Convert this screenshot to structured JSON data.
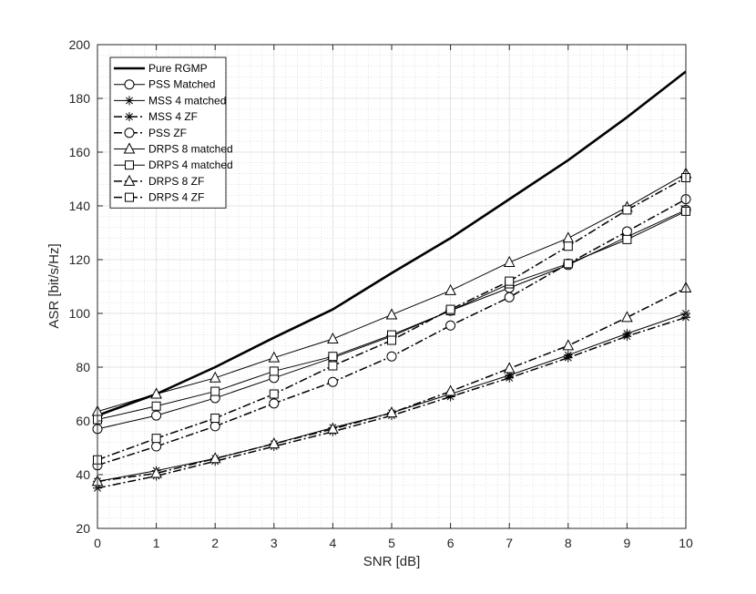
{
  "chart_data": {
    "type": "line",
    "xlabel": "SNR [dB]",
    "ylabel": "ASR [bit/s/Hz]",
    "x": [
      0,
      1,
      2,
      3,
      4,
      5,
      6,
      7,
      8,
      9,
      10
    ],
    "xlim": [
      0,
      10
    ],
    "ylim": [
      20,
      200
    ],
    "xticks": [
      "0",
      "1",
      "2",
      "3",
      "4",
      "5",
      "6",
      "7",
      "8",
      "9",
      "10"
    ],
    "yticks": [
      "20",
      "40",
      "60",
      "80",
      "100",
      "120",
      "140",
      "160",
      "180",
      "200"
    ],
    "grid": true,
    "legend_position": "top-left",
    "series": [
      {
        "name": "Pure RGMP",
        "style": "solid",
        "marker": "none",
        "width": 2.6,
        "values": [
          62,
          70,
          80,
          91,
          101.5,
          115,
          128,
          142.5,
          157,
          173,
          190
        ]
      },
      {
        "name": "PSS Matched",
        "style": "solid",
        "marker": "circle",
        "width": 1,
        "values": [
          57,
          62,
          68.5,
          76,
          83.5,
          91.5,
          101,
          109.5,
          118,
          128.5,
          138.5
        ]
      },
      {
        "name": "MSS 4 matched",
        "style": "solid",
        "marker": "asterisk",
        "width": 1,
        "values": [
          37.5,
          41.5,
          46,
          51.5,
          57.5,
          63,
          70,
          77,
          84.5,
          92.5,
          100
        ]
      },
      {
        "name": "MSS 4 ZF",
        "style": "dashdot",
        "marker": "asterisk",
        "width": 1.5,
        "values": [
          35,
          39.5,
          45,
          50.5,
          56,
          62,
          69,
          76,
          83.5,
          91.5,
          98.5
        ]
      },
      {
        "name": "PSS ZF",
        "style": "dashdot",
        "marker": "circle",
        "width": 1.5,
        "values": [
          43.5,
          50.5,
          58,
          66.5,
          74.5,
          84,
          95.5,
          106,
          118.5,
          130.5,
          142.5
        ]
      },
      {
        "name": "DRPS 8 matched",
        "style": "solid",
        "marker": "triangle",
        "width": 1,
        "values": [
          63.5,
          70,
          76,
          83.5,
          90.5,
          99.5,
          108.5,
          119,
          128,
          139.5,
          152
        ]
      },
      {
        "name": "DRPS 4 matched",
        "style": "solid",
        "marker": "square",
        "width": 1,
        "values": [
          60.5,
          65.5,
          71,
          78.5,
          84,
          92,
          101,
          111,
          118.5,
          127.5,
          138
        ]
      },
      {
        "name": "DRPS 8 ZF",
        "style": "dashdot",
        "marker": "triangle",
        "width": 1.5,
        "values": [
          37.5,
          40.5,
          46,
          51.5,
          57,
          63,
          71,
          79.5,
          88,
          98.5,
          109.5
        ]
      },
      {
        "name": "DRPS 4 ZF",
        "style": "dashdot",
        "marker": "square",
        "width": 1.5,
        "values": [
          45.5,
          53.5,
          61,
          70,
          80.5,
          90,
          101.5,
          112,
          125,
          138.5,
          150.5
        ]
      }
    ]
  }
}
